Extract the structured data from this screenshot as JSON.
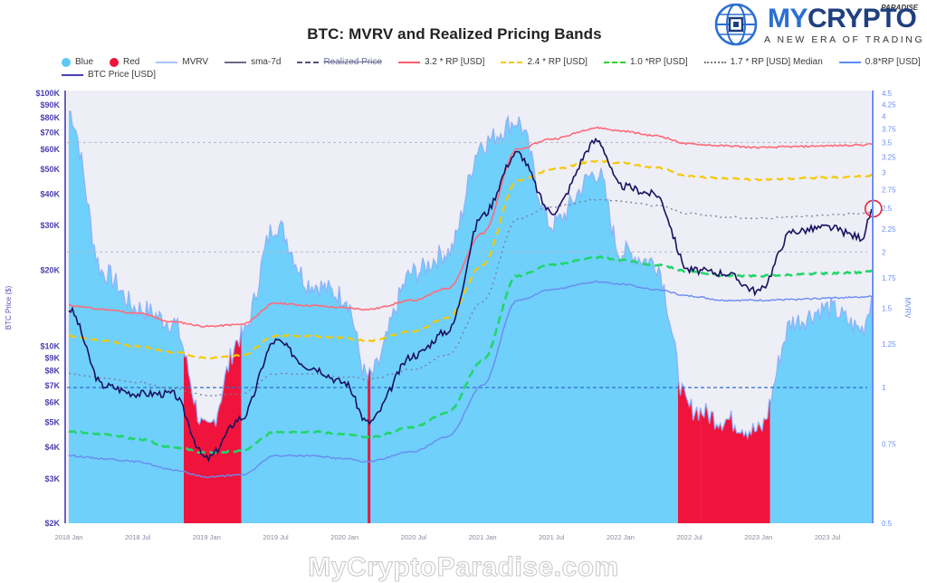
{
  "header": {
    "title": "BTC: MVRV and Realized Pricing Bands"
  },
  "logo": {
    "brand_prefix": "MY",
    "brand_main": "CRYPTO",
    "brand_super": "PARADISE",
    "tagline": "A NEW ERA OF TRADING",
    "icon": "globe-circuit-icon"
  },
  "watermark": {
    "text": "MyCryptoParadise.com"
  },
  "legend": {
    "row1": [
      {
        "label": "Blue",
        "type": "dot",
        "color": "#5bc8f5"
      },
      {
        "label": "Red",
        "type": "dot",
        "color": "#f0143c"
      },
      {
        "label": "MVRV",
        "type": "line",
        "style": "solid",
        "color": "#a9c4fb"
      },
      {
        "label": "sma-7d",
        "type": "line",
        "style": "solid",
        "color": "#6b6b8a"
      },
      {
        "label": "Realized Price",
        "type": "line",
        "style": "dashed",
        "color": "#555577"
      },
      {
        "label": "3.2 * RP [USD]",
        "type": "line",
        "style": "solid",
        "color": "#ff5a6e"
      },
      {
        "label": "2.4 * RP [USD]",
        "type": "line",
        "style": "dashed",
        "color": "#f5c800"
      },
      {
        "label": "1.0 *RP [USD]",
        "type": "line",
        "style": "dashed",
        "color": "#2fd22f"
      },
      {
        "label": "1.7 * RP [USD] Median",
        "type": "line",
        "style": "dotted",
        "color": "#777777"
      },
      {
        "label": "0.8*RP [USD]",
        "type": "line",
        "style": "solid",
        "color": "#5b8ef5"
      }
    ],
    "row2": [
      {
        "label": "BTC Price [USD]",
        "type": "line",
        "style": "solid",
        "color": "#4a3fb0"
      }
    ]
  },
  "colors": {
    "plot_bg": "#eeeef6",
    "blue_fill": "#6fd0fb",
    "red_fill": "#f0143c",
    "mvrv_line": "#8fb0f8",
    "price_line": "#1a1060",
    "band_3_2": "#ff6b78",
    "band_2_4": "#f5c800",
    "band_1_0": "#22d66a",
    "band_1_7": "#7a7a9a",
    "band_0_8": "#6a8af0",
    "hline_1": "#2b6fd1",
    "grid": "#b8b8c8",
    "left_axis": "#6a5fc0",
    "right_axis": "#6b8ef5",
    "highlight_circle": "#e8203c"
  },
  "chart_data": {
    "type": "line",
    "title": "BTC: MVRV and Realized Pricing Bands",
    "xlabel": "",
    "ylabel": "BTC Price ($)",
    "y2label": "MVRV",
    "yscale": "log",
    "ylim": [
      2000,
      100000
    ],
    "y2lim": [
      0.5,
      4.5
    ],
    "x_ticks": [
      "2018 Jan",
      "2018 Jul",
      "2019 Jan",
      "2019 Jul",
      "2020 Jan",
      "2020 Jul",
      "2021 Jan",
      "2021 Jul",
      "2022 Jan",
      "2022 Jul",
      "2023 Jan",
      "2023 Jul"
    ],
    "y_ticks": [
      "$100K",
      "$90K",
      "$80K",
      "$70K",
      "$60K",
      "$50K",
      "$40K",
      "$30K",
      "$20K",
      "$10K",
      "$9K",
      "$8K",
      "$7K",
      "$6K",
      "$5K",
      "$4K",
      "$3K",
      "$2K"
    ],
    "y2_ticks": [
      "4.5",
      "4.25",
      "4",
      "3.75",
      "3.5",
      "3.25",
      "3",
      "2.75",
      "2.5",
      "2.25",
      "2",
      "1.75",
      "1.5",
      "1.25",
      "1",
      "0.75",
      "0.5"
    ],
    "reference_lines_mvrv": [
      3.5,
      2.0,
      1.0
    ],
    "grid": false,
    "legend_position": "top",
    "annotation": "red circle marking BTC price touching 1.7*RP median band (late 2023)",
    "x": [
      "2018-01",
      "2018-04",
      "2018-07",
      "2018-10",
      "2019-01",
      "2019-04",
      "2019-07",
      "2019-10",
      "2020-01",
      "2020-03",
      "2020-07",
      "2020-10",
      "2021-01",
      "2021-04",
      "2021-07",
      "2021-11",
      "2022-01",
      "2022-04",
      "2022-07",
      "2022-10",
      "2023-01",
      "2023-04",
      "2023-07",
      "2023-10",
      "2023-11"
    ],
    "series": [
      {
        "name": "BTC Price [USD]",
        "axis": "left",
        "values": [
          14000,
          7000,
          6500,
          6500,
          3600,
          5200,
          10500,
          8300,
          7200,
          5000,
          9200,
          11500,
          33000,
          58000,
          34000,
          65000,
          43000,
          40000,
          20000,
          19500,
          16500,
          28500,
          29500,
          27000,
          35000
        ]
      },
      {
        "name": "3.2 * RP [USD]",
        "axis": "left",
        "values": [
          14500,
          14000,
          13500,
          12500,
          12000,
          12200,
          14800,
          14500,
          14200,
          14000,
          15200,
          17000,
          28000,
          60000,
          66000,
          73000,
          71000,
          68000,
          63000,
          62000,
          61000,
          61500,
          62000,
          62500,
          63000
        ]
      },
      {
        "name": "2.4 * RP [USD]",
        "axis": "left",
        "values": [
          11000,
          10500,
          10000,
          9500,
          9000,
          9200,
          11000,
          11000,
          10800,
          10500,
          11500,
          13000,
          21000,
          45000,
          50000,
          54000,
          53000,
          51000,
          47000,
          46000,
          45500,
          46000,
          46500,
          47000,
          47500
        ]
      },
      {
        "name": "1.7 * RP [USD] Median",
        "axis": "left",
        "values": [
          7800,
          7500,
          7200,
          6800,
          6400,
          6500,
          7800,
          7800,
          7600,
          7400,
          8100,
          9300,
          15000,
          32000,
          35500,
          38000,
          37500,
          36000,
          33500,
          32500,
          32000,
          32500,
          33000,
          33500,
          34000
        ]
      },
      {
        "name": "1.0 *RP [USD]",
        "axis": "left",
        "values": [
          4600,
          4500,
          4300,
          4000,
          3800,
          3850,
          4600,
          4600,
          4500,
          4350,
          4800,
          5500,
          8800,
          19000,
          21000,
          22500,
          22000,
          21000,
          19800,
          19000,
          19000,
          19200,
          19400,
          19600,
          19800
        ]
      },
      {
        "name": "0.8*RP [USD]",
        "axis": "left",
        "values": [
          3700,
          3600,
          3500,
          3250,
          3050,
          3100,
          3700,
          3700,
          3600,
          3500,
          3850,
          4400,
          7000,
          15200,
          16800,
          18000,
          17600,
          16800,
          15800,
          15200,
          15200,
          15300,
          15500,
          15700,
          15800
        ]
      },
      {
        "name": "MVRV",
        "axis": "right",
        "values": [
          4.1,
          1.8,
          1.5,
          1.4,
          0.8,
          1.3,
          2.3,
          1.7,
          1.6,
          1.05,
          1.8,
          2.0,
          3.5,
          3.9,
          2.3,
          3.0,
          2.0,
          1.9,
          0.9,
          0.85,
          0.8,
          1.4,
          1.5,
          1.35,
          1.6
        ]
      }
    ],
    "mvrv_regions": [
      {
        "color": "Red",
        "from": "2018-11",
        "to": "2019-03"
      },
      {
        "color": "Red",
        "from": "2020-03",
        "to": "2020-03"
      },
      {
        "color": "Red",
        "from": "2022-06",
        "to": "2022-07"
      },
      {
        "color": "Red",
        "from": "2022-08",
        "to": "2023-01"
      }
    ]
  }
}
